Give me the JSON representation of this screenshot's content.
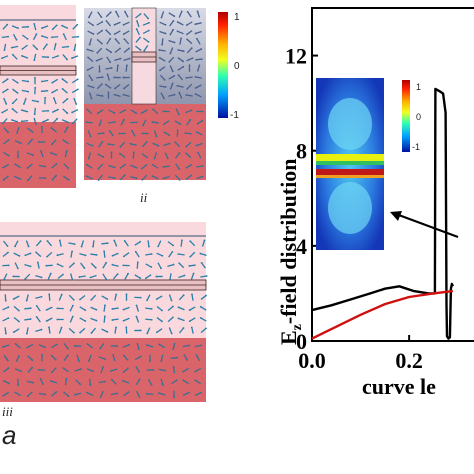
{
  "panel_labels": {
    "ii": "ii",
    "iii": "iii",
    "a": "a"
  },
  "colorbar_small": {
    "top": "1",
    "mid": "0",
    "bottom": "-1"
  },
  "colorbar_inset": {
    "top": "1",
    "mid": "0",
    "bottom": "-1"
  },
  "colors": {
    "field_fill": "#f9d9de",
    "substrate": "#d9646a",
    "mode_bg": "#a9aec0",
    "arrow": "#2a7fa8",
    "curve_black": "#000000",
    "curve_red": "#d01010"
  },
  "chart_data": {
    "type": "line",
    "ylabel_main": "E",
    "ylabel_sub": "z",
    "ylabel_rest": "-field distribution",
    "xlabel": "curve le",
    "xlim": [
      0.0,
      0.35
    ],
    "ylim": [
      0,
      14
    ],
    "y_ticks": [
      "0",
      "4",
      "8",
      "12"
    ],
    "x_ticks": [
      "0.0",
      "0.2"
    ],
    "series": [
      {
        "color": "#000000",
        "x": [
          0.0,
          0.04,
          0.08,
          0.12,
          0.15,
          0.18,
          0.21,
          0.24,
          0.253,
          0.254,
          0.263,
          0.27,
          0.275,
          0.277,
          0.278,
          0.281,
          0.284,
          0.286,
          0.288,
          0.29
        ],
        "y": [
          1.3,
          1.5,
          1.75,
          2.0,
          2.2,
          2.3,
          2.1,
          2.0,
          2.0,
          10.6,
          10.5,
          10.4,
          9.6,
          1.5,
          0.2,
          0.1,
          0.15,
          2.2,
          2.4,
          2.3
        ]
      },
      {
        "color": "#d01010",
        "x": [
          0.0,
          0.05,
          0.1,
          0.15,
          0.2,
          0.25,
          0.29
        ],
        "y": [
          0.1,
          0.6,
          1.1,
          1.55,
          1.85,
          2.0,
          2.1
        ]
      }
    ]
  }
}
